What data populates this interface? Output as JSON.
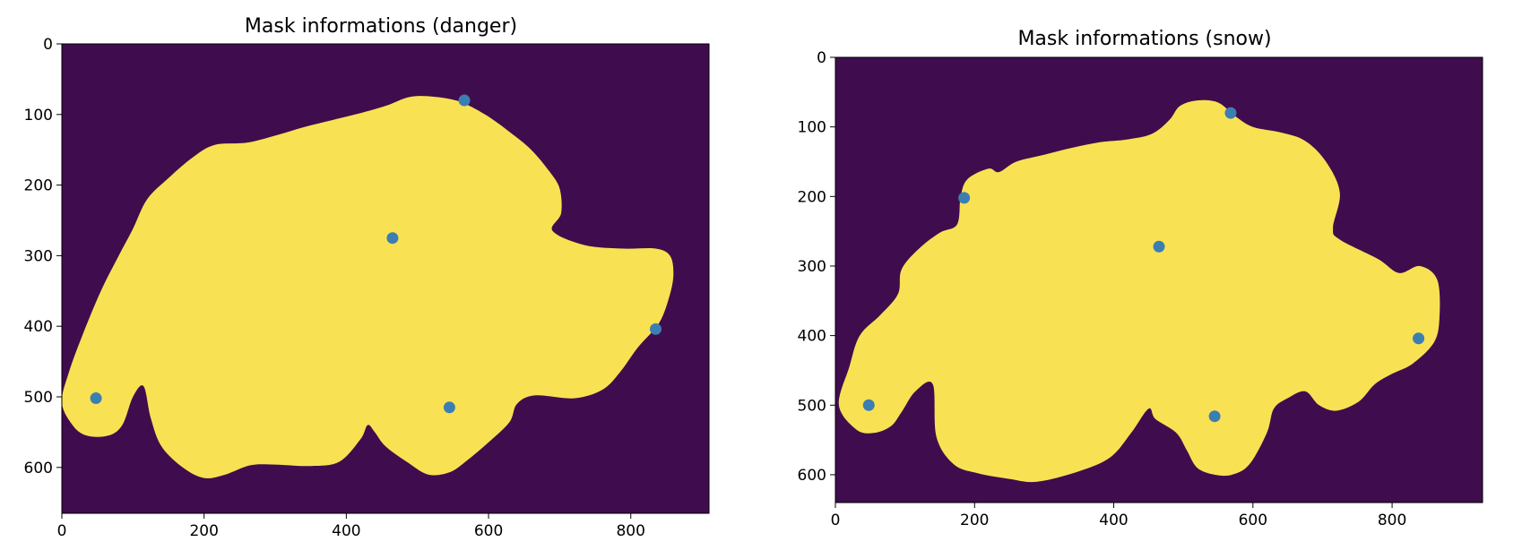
{
  "chart_data": [
    {
      "type": "scatter",
      "title": "Mask informations (danger)",
      "xlabel": "",
      "ylabel": "",
      "xlim": [
        0,
        910
      ],
      "ylim": [
        665,
        0
      ],
      "x_ticks": [
        0,
        200,
        400,
        600,
        800
      ],
      "y_ticks": [
        0,
        100,
        200,
        300,
        400,
        500,
        600
      ],
      "grid": false,
      "background_image": "binary mask (viridis colormap)",
      "mask_outline": [
        [
          0,
          508
        ],
        [
          10,
          465
        ],
        [
          30,
          410
        ],
        [
          55,
          350
        ],
        [
          80,
          300
        ],
        [
          100,
          262
        ],
        [
          120,
          220
        ],
        [
          150,
          190
        ],
        [
          185,
          160
        ],
        [
          215,
          143
        ],
        [
          260,
          140
        ],
        [
          300,
          130
        ],
        [
          340,
          118
        ],
        [
          380,
          108
        ],
        [
          420,
          98
        ],
        [
          455,
          88
        ],
        [
          490,
          75
        ],
        [
          525,
          75
        ],
        [
          560,
          82
        ],
        [
          595,
          100
        ],
        [
          630,
          125
        ],
        [
          660,
          150
        ],
        [
          685,
          180
        ],
        [
          700,
          205
        ],
        [
          702,
          240
        ],
        [
          690,
          265
        ],
        [
          735,
          285
        ],
        [
          790,
          290
        ],
        [
          835,
          290
        ],
        [
          855,
          300
        ],
        [
          860,
          325
        ],
        [
          855,
          355
        ],
        [
          840,
          395
        ],
        [
          810,
          430
        ],
        [
          785,
          465
        ],
        [
          760,
          490
        ],
        [
          720,
          502
        ],
        [
          665,
          498
        ],
        [
          640,
          510
        ],
        [
          630,
          535
        ],
        [
          605,
          560
        ],
        [
          570,
          590
        ],
        [
          545,
          607
        ],
        [
          515,
          610
        ],
        [
          485,
          592
        ],
        [
          455,
          570
        ],
        [
          440,
          550
        ],
        [
          430,
          540
        ],
        [
          420,
          560
        ],
        [
          390,
          592
        ],
        [
          350,
          598
        ],
        [
          300,
          596
        ],
        [
          265,
          597
        ],
        [
          230,
          610
        ],
        [
          200,
          615
        ],
        [
          170,
          600
        ],
        [
          140,
          570
        ],
        [
          125,
          530
        ],
        [
          115,
          485
        ],
        [
          100,
          500
        ],
        [
          85,
          540
        ],
        [
          65,
          555
        ],
        [
          35,
          555
        ],
        [
          15,
          540
        ]
      ],
      "points": [
        [
          48,
          502
        ],
        [
          465,
          275
        ],
        [
          566,
          80
        ],
        [
          545,
          515
        ],
        [
          835,
          404
        ]
      ],
      "colors": {
        "background": "#3f0d4d",
        "mask": "#f9e154",
        "points": "#3b7fb2"
      }
    },
    {
      "type": "scatter",
      "title": "Mask informations (snow)",
      "xlabel": "",
      "ylabel": "",
      "xlim": [
        0,
        930
      ],
      "ylim": [
        640,
        0
      ],
      "x_ticks": [
        0,
        200,
        400,
        600,
        800
      ],
      "y_ticks": [
        0,
        100,
        200,
        300,
        400,
        500,
        600
      ],
      "grid": false,
      "background_image": "binary mask (viridis colormap)",
      "mask_outline": [
        [
          5,
          500
        ],
        [
          20,
          445
        ],
        [
          35,
          400
        ],
        [
          65,
          370
        ],
        [
          90,
          340
        ],
        [
          95,
          305
        ],
        [
          120,
          275
        ],
        [
          150,
          252
        ],
        [
          175,
          240
        ],
        [
          180,
          200
        ],
        [
          190,
          175
        ],
        [
          220,
          160
        ],
        [
          235,
          165
        ],
        [
          260,
          150
        ],
        [
          300,
          140
        ],
        [
          340,
          130
        ],
        [
          380,
          122
        ],
        [
          420,
          118
        ],
        [
          455,
          110
        ],
        [
          480,
          90
        ],
        [
          495,
          70
        ],
        [
          520,
          62
        ],
        [
          550,
          65
        ],
        [
          575,
          85
        ],
        [
          600,
          100
        ],
        [
          640,
          108
        ],
        [
          675,
          120
        ],
        [
          705,
          150
        ],
        [
          725,
          195
        ],
        [
          715,
          245
        ],
        [
          725,
          262
        ],
        [
          780,
          290
        ],
        [
          810,
          310
        ],
        [
          840,
          300
        ],
        [
          865,
          320
        ],
        [
          868,
          375
        ],
        [
          860,
          410
        ],
        [
          830,
          440
        ],
        [
          800,
          455
        ],
        [
          775,
          470
        ],
        [
          752,
          495
        ],
        [
          720,
          508
        ],
        [
          695,
          500
        ],
        [
          675,
          480
        ],
        [
          650,
          490
        ],
        [
          630,
          505
        ],
        [
          620,
          540
        ],
        [
          595,
          585
        ],
        [
          570,
          600
        ],
        [
          545,
          600
        ],
        [
          520,
          590
        ],
        [
          505,
          565
        ],
        [
          490,
          540
        ],
        [
          460,
          520
        ],
        [
          450,
          505
        ],
        [
          425,
          540
        ],
        [
          395,
          575
        ],
        [
          350,
          595
        ],
        [
          290,
          610
        ],
        [
          250,
          606
        ],
        [
          205,
          598
        ],
        [
          170,
          585
        ],
        [
          145,
          545
        ],
        [
          140,
          470
        ],
        [
          115,
          480
        ],
        [
          95,
          510
        ],
        [
          80,
          530
        ],
        [
          55,
          540
        ],
        [
          30,
          535
        ]
      ],
      "points": [
        [
          48,
          500
        ],
        [
          185,
          202
        ],
        [
          465,
          272
        ],
        [
          568,
          80
        ],
        [
          545,
          516
        ],
        [
          838,
          404
        ]
      ],
      "colors": {
        "background": "#3f0d4d",
        "mask": "#f9e154",
        "points": "#3b7fb2"
      }
    }
  ]
}
